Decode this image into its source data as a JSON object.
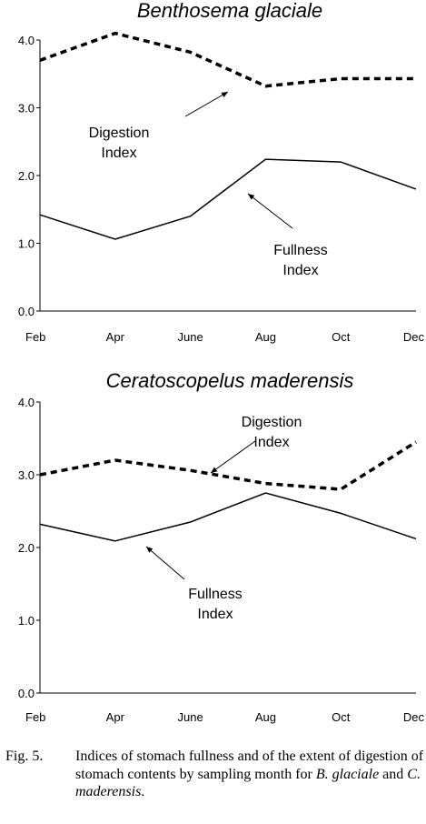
{
  "chart_data": [
    {
      "type": "line",
      "title": "Benthosema glaciale",
      "categories": [
        "Feb",
        "Apr",
        "June",
        "Aug",
        "Oct",
        "Dec"
      ],
      "ylim": [
        0,
        4.0
      ],
      "yticks": [
        "0.0",
        "1.0",
        "2.0",
        "3.0",
        "4.0"
      ],
      "grid": false,
      "series": [
        {
          "name": "Digestion Index",
          "style": "dashed",
          "values": [
            3.7,
            4.1,
            3.82,
            3.32,
            3.43,
            3.43
          ]
        },
        {
          "name": "Fullness Index",
          "style": "solid",
          "values": [
            1.42,
            1.06,
            1.4,
            2.24,
            2.2,
            1.8
          ]
        }
      ],
      "annotations": [
        {
          "lines": [
            "Digestion",
            "Index"
          ],
          "points_to": "Digestion Index"
        },
        {
          "lines": [
            "Fullness",
            "Index"
          ],
          "points_to": "Fullness Index"
        }
      ]
    },
    {
      "type": "line",
      "title": "Ceratoscopelus maderensis",
      "categories": [
        "Feb",
        "Apr",
        "June",
        "Aug",
        "Oct",
        "Dec"
      ],
      "ylim": [
        0,
        4.0
      ],
      "yticks": [
        "0.0",
        "1.0",
        "2.0",
        "3.0",
        "4.0"
      ],
      "grid": false,
      "series": [
        {
          "name": "Digestion Index",
          "style": "dashed",
          "values": [
            3.0,
            3.2,
            3.06,
            2.88,
            2.8,
            3.45
          ]
        },
        {
          "name": "Fullness Index",
          "style": "solid",
          "values": [
            2.32,
            2.09,
            2.35,
            2.75,
            2.47,
            2.12
          ]
        }
      ],
      "annotations": [
        {
          "lines": [
            "Digestion",
            "Index"
          ],
          "points_to": "Digestion Index"
        },
        {
          "lines": [
            "Fullness",
            "Index"
          ],
          "points_to": "Fullness Index"
        }
      ]
    }
  ],
  "caption": {
    "label": "Fig. 5.",
    "text": "Indices of stomach fullness and of the extent of digestion of stomach contents by sampling month for ",
    "species_1": "B. glaciale",
    "conjunction": " and ",
    "species_2": "C. maderensis",
    "end": "."
  },
  "colors": {
    "line": "#000000",
    "background": "#ffffff"
  }
}
